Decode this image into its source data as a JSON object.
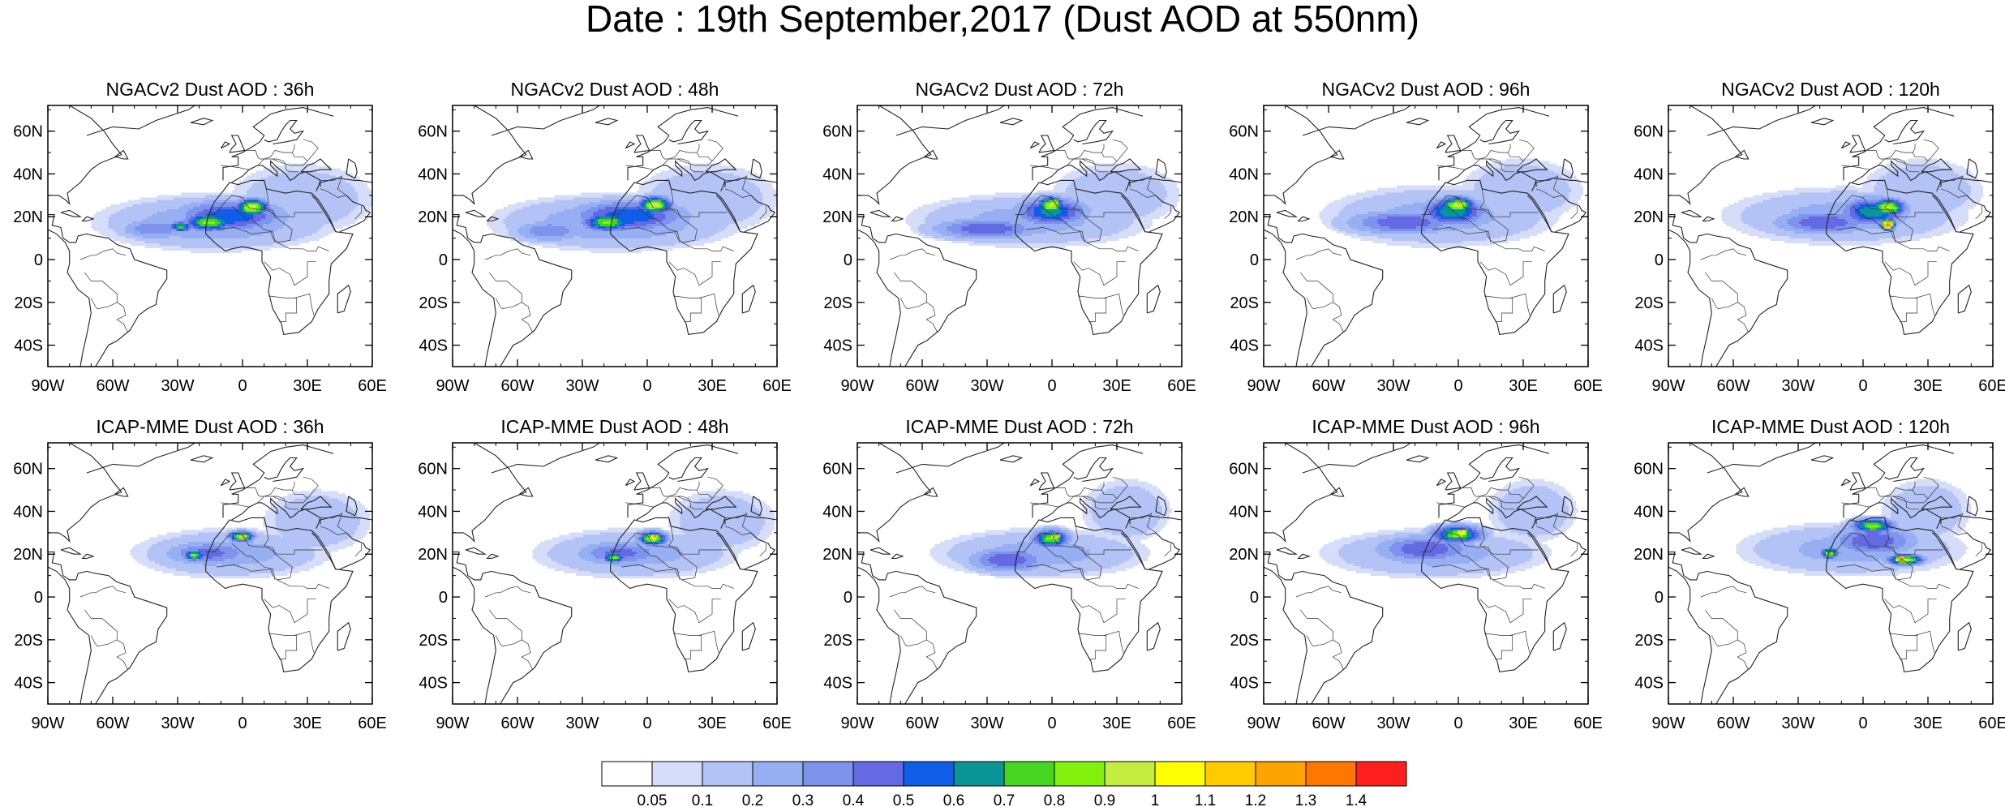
{
  "title": "Date : 19th September,2017 (Dust AOD at 550nm)",
  "panels": [
    {
      "title": "NGACv2 Dust AOD : 36h",
      "plumes": [
        {
          "lon": -12,
          "lat": 17,
          "rlon": 58,
          "rlat": 14,
          "level": 0.25
        },
        {
          "lon": 28,
          "lat": 28,
          "rlon": 40,
          "rlat": 20,
          "level": 0.15
        },
        {
          "lon": -40,
          "lat": 14,
          "rlon": 20,
          "rlat": 6,
          "level": 0.35
        },
        {
          "lon": -5,
          "lat": 20,
          "rlon": 30,
          "rlat": 9,
          "level": 0.55
        },
        {
          "lon": -15,
          "lat": 17,
          "rlon": 14,
          "rlat": 5,
          "level": 0.8
        },
        {
          "lon": 5,
          "lat": 24,
          "rlon": 9,
          "rlat": 5,
          "level": 0.95
        },
        {
          "lon": -28,
          "lat": 15,
          "rlon": 7,
          "rlat": 3,
          "level": 0.7
        }
      ]
    },
    {
      "title": "NGACv2 Dust AOD : 48h",
      "plumes": [
        {
          "lon": -14,
          "lat": 17,
          "rlon": 60,
          "rlat": 14,
          "level": 0.25
        },
        {
          "lon": 28,
          "lat": 28,
          "rlon": 40,
          "rlat": 20,
          "level": 0.15
        },
        {
          "lon": -45,
          "lat": 13,
          "rlon": 20,
          "rlat": 6,
          "level": 0.35
        },
        {
          "lon": -8,
          "lat": 20,
          "rlon": 32,
          "rlat": 9,
          "level": 0.55
        },
        {
          "lon": -18,
          "lat": 17,
          "rlon": 14,
          "rlat": 5,
          "level": 0.8
        },
        {
          "lon": 4,
          "lat": 25,
          "rlon": 9,
          "rlat": 5,
          "level": 0.95
        }
      ]
    },
    {
      "title": "NGACv2 Dust AOD : 72h",
      "plumes": [
        {
          "lon": -10,
          "lat": 18,
          "rlon": 62,
          "rlat": 14,
          "level": 0.2
        },
        {
          "lon": 30,
          "lat": 30,
          "rlon": 36,
          "rlat": 18,
          "level": 0.15
        },
        {
          "lon": -30,
          "lat": 14,
          "rlon": 30,
          "rlat": 6,
          "level": 0.45
        },
        {
          "lon": 0,
          "lat": 22,
          "rlon": 20,
          "rlat": 8,
          "level": 0.6
        },
        {
          "lon": 0,
          "lat": 25,
          "rlon": 8,
          "rlat": 5,
          "level": 0.9
        },
        {
          "lon": 2,
          "lat": 26,
          "rlon": 3,
          "rlat": 2,
          "level": 1.25
        }
      ]
    },
    {
      "title": "NGACv2 Dust AOD : 96h",
      "plumes": [
        {
          "lon": -8,
          "lat": 20,
          "rlon": 60,
          "rlat": 16,
          "level": 0.2
        },
        {
          "lon": 30,
          "lat": 32,
          "rlon": 34,
          "rlat": 18,
          "level": 0.15
        },
        {
          "lon": -25,
          "lat": 17,
          "rlon": 32,
          "rlat": 7,
          "level": 0.45
        },
        {
          "lon": -2,
          "lat": 22,
          "rlon": 18,
          "rlat": 8,
          "level": 0.65
        },
        {
          "lon": 0,
          "lat": 25,
          "rlon": 10,
          "rlat": 5,
          "level": 0.9
        },
        {
          "lon": 1,
          "lat": 26,
          "rlon": 4,
          "rlat": 2,
          "level": 1.2
        }
      ]
    },
    {
      "title": "NGACv2 Dust AOD : 120h",
      "plumes": [
        {
          "lon": -8,
          "lat": 20,
          "rlon": 62,
          "rlat": 15,
          "level": 0.2
        },
        {
          "lon": 28,
          "lat": 32,
          "rlon": 34,
          "rlat": 18,
          "level": 0.15
        },
        {
          "lon": -18,
          "lat": 17,
          "rlon": 28,
          "rlat": 7,
          "level": 0.45
        },
        {
          "lon": 5,
          "lat": 22,
          "rlon": 18,
          "rlat": 8,
          "level": 0.65
        },
        {
          "lon": 12,
          "lat": 24,
          "rlon": 10,
          "rlat": 5,
          "level": 0.9
        },
        {
          "lon": 12,
          "lat": 16,
          "rlon": 4,
          "rlat": 3,
          "level": 1.35
        }
      ]
    },
    {
      "title": "ICAP-MME Dust AOD : 36h",
      "plumes": [
        {
          "lon": -5,
          "lat": 20,
          "rlon": 50,
          "rlat": 13,
          "level": 0.2
        },
        {
          "lon": 35,
          "lat": 35,
          "rlon": 30,
          "rlat": 18,
          "level": 0.15
        },
        {
          "lon": -15,
          "lat": 20,
          "rlon": 25,
          "rlat": 7,
          "level": 0.4
        },
        {
          "lon": -22,
          "lat": 19,
          "rlon": 6,
          "rlat": 3,
          "level": 0.8
        },
        {
          "lon": 0,
          "lat": 28,
          "rlon": 7,
          "rlat": 3,
          "level": 0.9
        },
        {
          "lon": 1,
          "lat": 28,
          "rlon": 3,
          "rlat": 1.5,
          "level": 1.3
        }
      ]
    },
    {
      "title": "ICAP-MME Dust AOD : 48h",
      "plumes": [
        {
          "lon": -5,
          "lat": 20,
          "rlon": 52,
          "rlat": 13,
          "level": 0.2
        },
        {
          "lon": 35,
          "lat": 35,
          "rlon": 30,
          "rlat": 18,
          "level": 0.15
        },
        {
          "lon": -12,
          "lat": 20,
          "rlon": 25,
          "rlat": 7,
          "level": 0.4
        },
        {
          "lon": -15,
          "lat": 18,
          "rlon": 6,
          "rlat": 3,
          "level": 0.8
        },
        {
          "lon": 3,
          "lat": 27,
          "rlon": 8,
          "rlat": 4,
          "level": 0.9
        },
        {
          "lon": 4,
          "lat": 28,
          "rlon": 3,
          "rlat": 2,
          "level": 1.35
        }
      ]
    },
    {
      "title": "ICAP-MME Dust AOD : 72h",
      "plumes": [
        {
          "lon": -5,
          "lat": 20,
          "rlon": 55,
          "rlat": 13,
          "level": 0.2
        },
        {
          "lon": 35,
          "lat": 40,
          "rlon": 25,
          "rlat": 18,
          "level": 0.15
        },
        {
          "lon": -20,
          "lat": 17,
          "rlon": 22,
          "rlat": 7,
          "level": 0.45
        },
        {
          "lon": 0,
          "lat": 27,
          "rlon": 10,
          "rlat": 5,
          "level": 0.8
        },
        {
          "lon": 2,
          "lat": 28,
          "rlon": 4,
          "rlat": 2,
          "level": 1.25
        }
      ]
    },
    {
      "title": "ICAP-MME Dust AOD : 96h",
      "plumes": [
        {
          "lon": -10,
          "lat": 20,
          "rlon": 58,
          "rlat": 13,
          "level": 0.2
        },
        {
          "lon": 35,
          "lat": 40,
          "rlon": 25,
          "rlat": 18,
          "level": 0.15
        },
        {
          "lon": -15,
          "lat": 22,
          "rlon": 28,
          "rlat": 8,
          "level": 0.45
        },
        {
          "lon": 0,
          "lat": 29,
          "rlon": 14,
          "rlat": 5,
          "level": 0.8
        },
        {
          "lon": 2,
          "lat": 30,
          "rlon": 5,
          "rlat": 2,
          "level": 1.2
        }
      ]
    },
    {
      "title": "ICAP-MME Dust AOD : 120h",
      "plumes": [
        {
          "lon": -5,
          "lat": 22,
          "rlon": 58,
          "rlat": 14,
          "level": 0.2
        },
        {
          "lon": 30,
          "lat": 40,
          "rlon": 25,
          "rlat": 18,
          "level": 0.15
        },
        {
          "lon": 5,
          "lat": 26,
          "rlon": 25,
          "rlat": 9,
          "level": 0.45
        },
        {
          "lon": 5,
          "lat": 33,
          "rlon": 12,
          "rlat": 4,
          "level": 0.8
        },
        {
          "lon": 20,
          "lat": 17,
          "rlon": 10,
          "rlat": 3,
          "level": 0.9
        },
        {
          "lon": 18,
          "lat": 17,
          "rlon": 4,
          "rlat": 2,
          "level": 1.35
        },
        {
          "lon": -15,
          "lat": 20,
          "rlon": 5,
          "rlat": 3,
          "level": 0.85
        }
      ]
    }
  ],
  "map_extent": {
    "lon": [
      -90,
      60
    ],
    "lat": [
      -50,
      72
    ]
  },
  "x_tick_labels": [
    "90W",
    "60W",
    "30W",
    "0",
    "30E",
    "60E"
  ],
  "x_tick_values": [
    -90,
    -60,
    -30,
    0,
    30,
    60
  ],
  "y_tick_labels": [
    "60N",
    "40N",
    "20N",
    "0",
    "20S",
    "40S"
  ],
  "y_tick_values": [
    60,
    40,
    20,
    0,
    -20,
    -40
  ],
  "colorbar": {
    "colors": [
      "#ffffff",
      "#d5ddf8",
      "#b3c3f5",
      "#96aff2",
      "#7e93ec",
      "#6469e4",
      "#0e5ee8",
      "#0a9696",
      "#47d620",
      "#82f20c",
      "#c3ee3f",
      "#fffe00",
      "#ffcb00",
      "#ffa300",
      "#ff7600",
      "#ff1f1f"
    ],
    "labels": [
      "0.05",
      "0.1",
      "0.2",
      "0.3",
      "0.4",
      "0.5",
      "0.6",
      "0.7",
      "0.8",
      "0.9",
      "1",
      "1.1",
      "1.2",
      "1.3",
      "1.4"
    ],
    "thresholds": [
      0.05,
      0.1,
      0.2,
      0.3,
      0.4,
      0.5,
      0.6,
      0.7,
      0.8,
      0.9,
      1.0,
      1.1,
      1.2,
      1.3,
      1.4
    ]
  }
}
